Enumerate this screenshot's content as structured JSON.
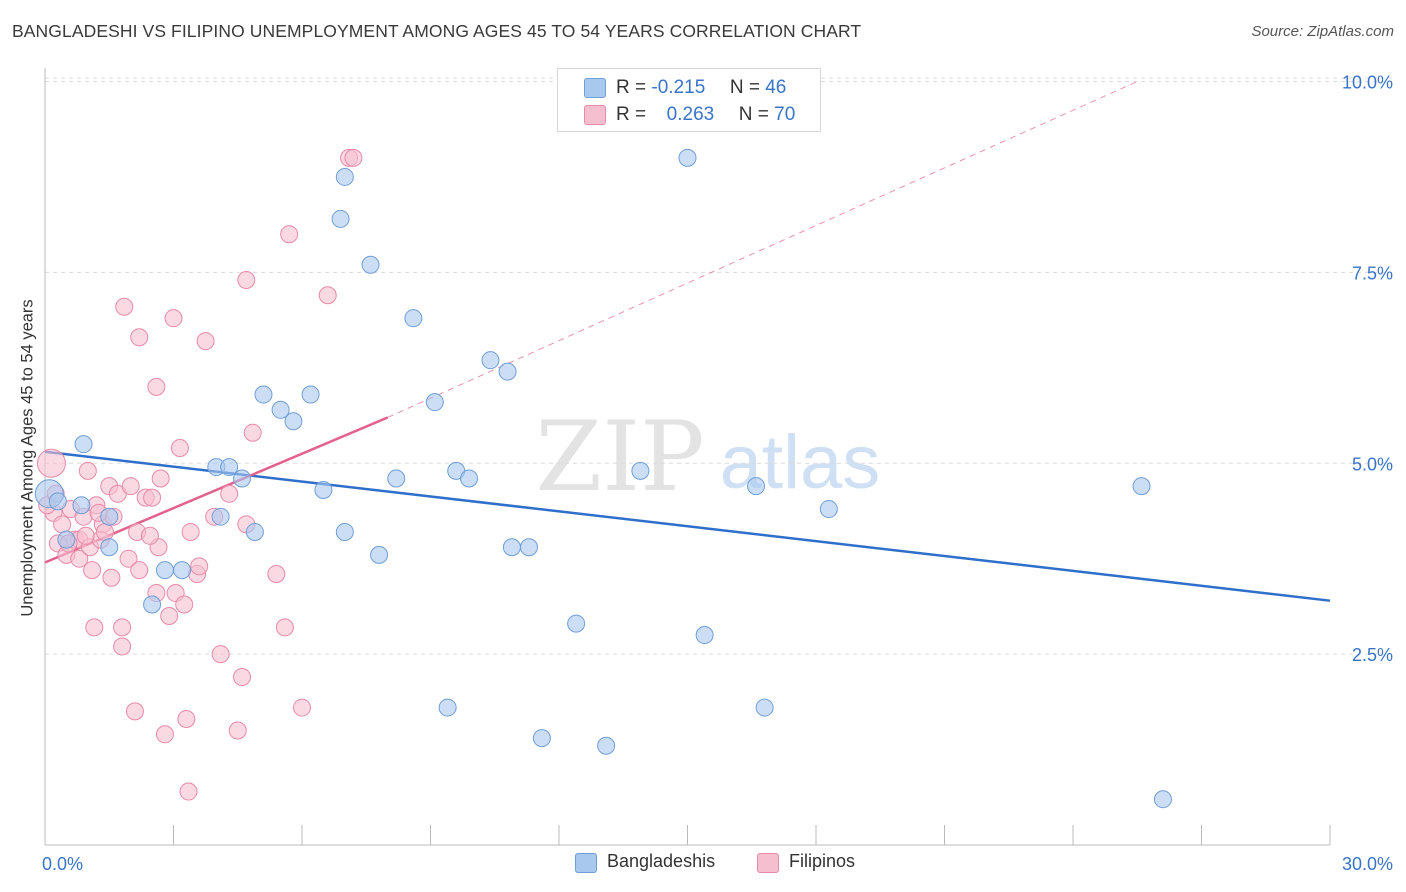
{
  "header": {
    "title": "BANGLADESHI VS FILIPINO UNEMPLOYMENT AMONG AGES 45 TO 54 YEARS CORRELATION CHART",
    "source": "Source: ZipAtlas.com"
  },
  "watermark": {
    "zip": "ZIP",
    "atlas": "atlas"
  },
  "legend": {
    "rows": [
      {
        "r_label": "R =",
        "r_value": "-0.215",
        "n_label": "N =",
        "n_value": "46"
      },
      {
        "r_label": "R =",
        "r_value": "0.263",
        "n_label": "N =",
        "n_value": "70"
      }
    ]
  },
  "bottom_legend": {
    "items": [
      "Bangladeshis",
      "Filipinos"
    ]
  },
  "colors": {
    "blue_fill": "#a9c8ee",
    "blue_stroke": "#6f9fd8",
    "blue_line": "#2f6fcb",
    "pink_fill": "#f6bfd0",
    "pink_stroke": "#e98aa9",
    "pink_line": "#e2628c",
    "axis_label": "#3a74c9",
    "grid": "#dcdcdc"
  },
  "chart_data": {
    "type": "scatter",
    "title": "BANGLADESHI VS FILIPINO UNEMPLOYMENT AMONG AGES 45 TO 54 YEARS CORRELATION CHART",
    "xlabel": "",
    "ylabel": "Unemployment Among Ages 45 to 54 years",
    "xlim": [
      0,
      30
    ],
    "ylim": [
      0,
      10.5
    ],
    "x_tick_labels": [
      {
        "value": 0,
        "label": "0.0%"
      },
      {
        "value": 30,
        "label": "30.0%"
      }
    ],
    "y_tick_labels": [
      {
        "value": 2.5,
        "label": "2.5%"
      },
      {
        "value": 5.0,
        "label": "5.0%"
      },
      {
        "value": 7.5,
        "label": "7.5%"
      },
      {
        "value": 10.0,
        "label": "10.0%"
      }
    ],
    "grid": true,
    "legend_position": "top-center",
    "series": [
      {
        "name": "Bangladeshis",
        "points": [
          [
            0.1,
            4.6
          ],
          [
            0.3,
            4.5
          ],
          [
            0.5,
            4.0
          ],
          [
            0.9,
            5.25
          ],
          [
            0.85,
            4.45
          ],
          [
            1.5,
            4.3
          ],
          [
            1.5,
            3.9
          ],
          [
            2.5,
            3.15
          ],
          [
            2.8,
            3.6
          ],
          [
            3.2,
            3.6
          ],
          [
            4.0,
            4.95
          ],
          [
            4.1,
            4.3
          ],
          [
            4.3,
            4.95
          ],
          [
            4.6,
            4.8
          ],
          [
            4.9,
            4.1
          ],
          [
            5.1,
            5.9
          ],
          [
            5.5,
            5.7
          ],
          [
            5.8,
            5.55
          ],
          [
            6.2,
            5.9
          ],
          [
            6.5,
            4.65
          ],
          [
            6.9,
            8.2
          ],
          [
            7.0,
            8.75
          ],
          [
            7.0,
            4.1
          ],
          [
            7.6,
            7.6
          ],
          [
            7.8,
            3.8
          ],
          [
            8.2,
            4.8
          ],
          [
            8.6,
            6.9
          ],
          [
            9.1,
            5.8
          ],
          [
            9.4,
            1.8
          ],
          [
            9.6,
            4.9
          ],
          [
            9.9,
            4.8
          ],
          [
            10.4,
            6.35
          ],
          [
            10.8,
            6.2
          ],
          [
            10.9,
            3.9
          ],
          [
            11.3,
            3.9
          ],
          [
            11.6,
            1.4
          ],
          [
            12.4,
            2.9
          ],
          [
            13.1,
            1.3
          ],
          [
            13.9,
            4.9
          ],
          [
            15.0,
            9.0
          ],
          [
            15.4,
            2.75
          ],
          [
            16.6,
            4.7
          ],
          [
            16.8,
            1.8
          ],
          [
            18.3,
            4.4
          ],
          [
            25.6,
            4.7
          ],
          [
            26.1,
            0.6
          ]
        ]
      },
      {
        "name": "Filipinos",
        "points": [
          [
            0.15,
            5.0
          ],
          [
            0.2,
            4.35
          ],
          [
            0.3,
            3.95
          ],
          [
            0.4,
            4.2
          ],
          [
            0.5,
            3.8
          ],
          [
            0.6,
            4.4
          ],
          [
            0.7,
            4.0
          ],
          [
            0.8,
            3.75
          ],
          [
            0.8,
            4.0
          ],
          [
            0.9,
            4.3
          ],
          [
            1.0,
            4.9
          ],
          [
            1.05,
            3.9
          ],
          [
            1.1,
            3.6
          ],
          [
            1.15,
            2.85
          ],
          [
            1.2,
            4.45
          ],
          [
            1.3,
            4.0
          ],
          [
            1.35,
            4.2
          ],
          [
            1.4,
            4.1
          ],
          [
            1.5,
            4.7
          ],
          [
            1.55,
            3.5
          ],
          [
            1.6,
            4.3
          ],
          [
            1.7,
            4.6
          ],
          [
            1.8,
            2.6
          ],
          [
            1.8,
            2.85
          ],
          [
            1.85,
            7.05
          ],
          [
            1.95,
            3.75
          ],
          [
            2.0,
            4.7
          ],
          [
            2.1,
            1.75
          ],
          [
            2.15,
            4.1
          ],
          [
            2.2,
            3.6
          ],
          [
            2.2,
            6.65
          ],
          [
            2.35,
            4.55
          ],
          [
            2.5,
            4.55
          ],
          [
            2.6,
            6.0
          ],
          [
            2.6,
            3.3
          ],
          [
            2.65,
            3.9
          ],
          [
            2.7,
            4.8
          ],
          [
            2.8,
            1.45
          ],
          [
            2.9,
            3.0
          ],
          [
            3.0,
            6.9
          ],
          [
            3.05,
            3.3
          ],
          [
            3.15,
            5.2
          ],
          [
            3.25,
            3.15
          ],
          [
            3.3,
            1.65
          ],
          [
            3.35,
            0.7
          ],
          [
            3.4,
            4.1
          ],
          [
            3.55,
            3.55
          ],
          [
            3.6,
            3.65
          ],
          [
            3.75,
            6.6
          ],
          [
            3.95,
            4.3
          ],
          [
            4.1,
            2.5
          ],
          [
            4.3,
            4.6
          ],
          [
            4.5,
            1.5
          ],
          [
            4.6,
            2.2
          ],
          [
            4.7,
            4.2
          ],
          [
            4.7,
            7.4
          ],
          [
            4.85,
            5.4
          ],
          [
            5.4,
            3.55
          ],
          [
            5.6,
            2.85
          ],
          [
            5.7,
            8.0
          ],
          [
            6.0,
            1.8
          ],
          [
            6.6,
            7.2
          ],
          [
            7.1,
            9.0
          ],
          [
            7.2,
            9.0
          ],
          [
            0.05,
            4.45
          ],
          [
            0.25,
            4.6
          ],
          [
            0.55,
            3.95
          ],
          [
            1.25,
            4.35
          ],
          [
            2.45,
            4.05
          ],
          [
            0.95,
            4.05
          ]
        ]
      }
    ],
    "trendlines": [
      {
        "series": "Bangladeshis",
        "x": [
          0,
          30
        ],
        "y": [
          5.15,
          3.2
        ],
        "style": "solid"
      },
      {
        "series": "Filipinos",
        "x": [
          0,
          8
        ],
        "y": [
          3.7,
          5.6
        ],
        "style": "solid"
      },
      {
        "series": "Filipinos",
        "x": [
          8,
          25.5
        ],
        "y": [
          5.6,
          10.0
        ],
        "style": "dashed"
      }
    ]
  }
}
